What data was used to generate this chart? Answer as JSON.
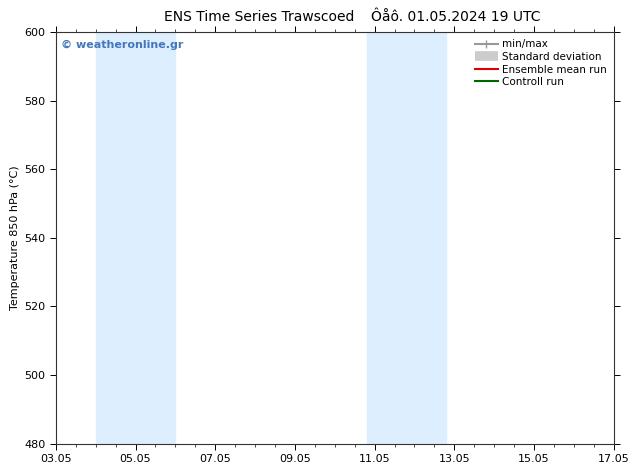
{
  "title": "ENS Time Series Trawscoed",
  "title2": "Ôåô. 01.05.2024 19 UTC",
  "ylabel": "Temperature 850 hPa (°C)",
  "ylim": [
    480,
    600
  ],
  "yticks": [
    480,
    500,
    520,
    540,
    560,
    580,
    600
  ],
  "xtick_labels": [
    "03.05",
    "05.05",
    "07.05",
    "09.05",
    "11.05",
    "13.05",
    "15.05",
    "17.05"
  ],
  "xtick_positions": [
    0,
    2,
    4,
    6,
    8,
    10,
    12,
    14
  ],
  "xlim": [
    0,
    14
  ],
  "shaded_bands": [
    {
      "x_start": 1.0,
      "x_end": 3.0,
      "color": "#ddeeff"
    },
    {
      "x_start": 7.8,
      "x_end": 9.8,
      "color": "#ddeeff"
    }
  ],
  "watermark_text": "© weatheronline.gr",
  "watermark_color": "#4477bb",
  "background_color": "#ffffff",
  "plot_bg_color": "#ffffff",
  "legend_entries": [
    {
      "label": "min/max",
      "color": "#999999",
      "lw": 1.5
    },
    {
      "label": "Standard deviation",
      "color": "#cccccc",
      "lw": 7
    },
    {
      "label": "Ensemble mean run",
      "color": "#dd0000",
      "lw": 1.5
    },
    {
      "label": "Controll run",
      "color": "#006600",
      "lw": 1.5
    }
  ],
  "title_fontsize": 10,
  "tick_fontsize": 8,
  "ylabel_fontsize": 8,
  "legend_fontsize": 7.5
}
